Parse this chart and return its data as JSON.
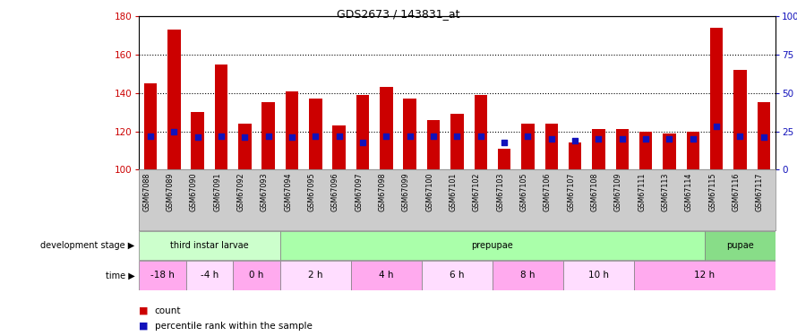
{
  "title": "GDS2673 / 143831_at",
  "samples": [
    "GSM67088",
    "GSM67089",
    "GSM67090",
    "GSM67091",
    "GSM67092",
    "GSM67093",
    "GSM67094",
    "GSM67095",
    "GSM67096",
    "GSM67097",
    "GSM67098",
    "GSM67099",
    "GSM67100",
    "GSM67101",
    "GSM67102",
    "GSM67103",
    "GSM67105",
    "GSM67106",
    "GSM67107",
    "GSM67108",
    "GSM67109",
    "GSM67111",
    "GSM67113",
    "GSM67114",
    "GSM67115",
    "GSM67116",
    "GSM67117"
  ],
  "counts": [
    145,
    173,
    130,
    155,
    124,
    135,
    141,
    137,
    123,
    139,
    143,
    137,
    126,
    129,
    139,
    111,
    124,
    124,
    114,
    121,
    121,
    120,
    119,
    120,
    174,
    152,
    135
  ],
  "pct_ranks": [
    22,
    25,
    21,
    22,
    21,
    22,
    21,
    22,
    22,
    18,
    22,
    22,
    22,
    22,
    22,
    18,
    22,
    20,
    19,
    20,
    20,
    20,
    20,
    20,
    28,
    22,
    21
  ],
  "ymin": 100,
  "ymax": 180,
  "yticks_left": [
    100,
    120,
    140,
    160,
    180
  ],
  "yticks_right_vals": [
    0,
    25,
    50,
    75,
    100
  ],
  "yticks_right_labels": [
    "0",
    "25",
    "50",
    "75",
    "100%"
  ],
  "bar_color": "#cc0000",
  "dot_color": "#1111bb",
  "bg_color": "#ffffff",
  "label_bg_color": "#cccccc",
  "dev_stages": [
    {
      "label": "third instar larvae",
      "start": 0,
      "end": 6,
      "color": "#ccffcc"
    },
    {
      "label": "prepupae",
      "start": 6,
      "end": 24,
      "color": "#aaffaa"
    },
    {
      "label": "pupae",
      "start": 24,
      "end": 27,
      "color": "#88dd88"
    }
  ],
  "time_segs": [
    {
      "label": "-18 h",
      "start": 0,
      "end": 2,
      "color": "#ffaaee"
    },
    {
      "label": "-4 h",
      "start": 2,
      "end": 4,
      "color": "#ffddff"
    },
    {
      "label": "0 h",
      "start": 4,
      "end": 6,
      "color": "#ffaaee"
    },
    {
      "label": "2 h",
      "start": 6,
      "end": 9,
      "color": "#ffddff"
    },
    {
      "label": "4 h",
      "start": 9,
      "end": 12,
      "color": "#ffaaee"
    },
    {
      "label": "6 h",
      "start": 12,
      "end": 15,
      "color": "#ffddff"
    },
    {
      "label": "8 h",
      "start": 15,
      "end": 18,
      "color": "#ffaaee"
    },
    {
      "label": "10 h",
      "start": 18,
      "end": 21,
      "color": "#ffddff"
    },
    {
      "label": "12 h",
      "start": 21,
      "end": 27,
      "color": "#ffaaee"
    }
  ],
  "dev_label": "development stage",
  "time_label": "time",
  "legend_count": "count",
  "legend_pct": "percentile rank within the sample"
}
